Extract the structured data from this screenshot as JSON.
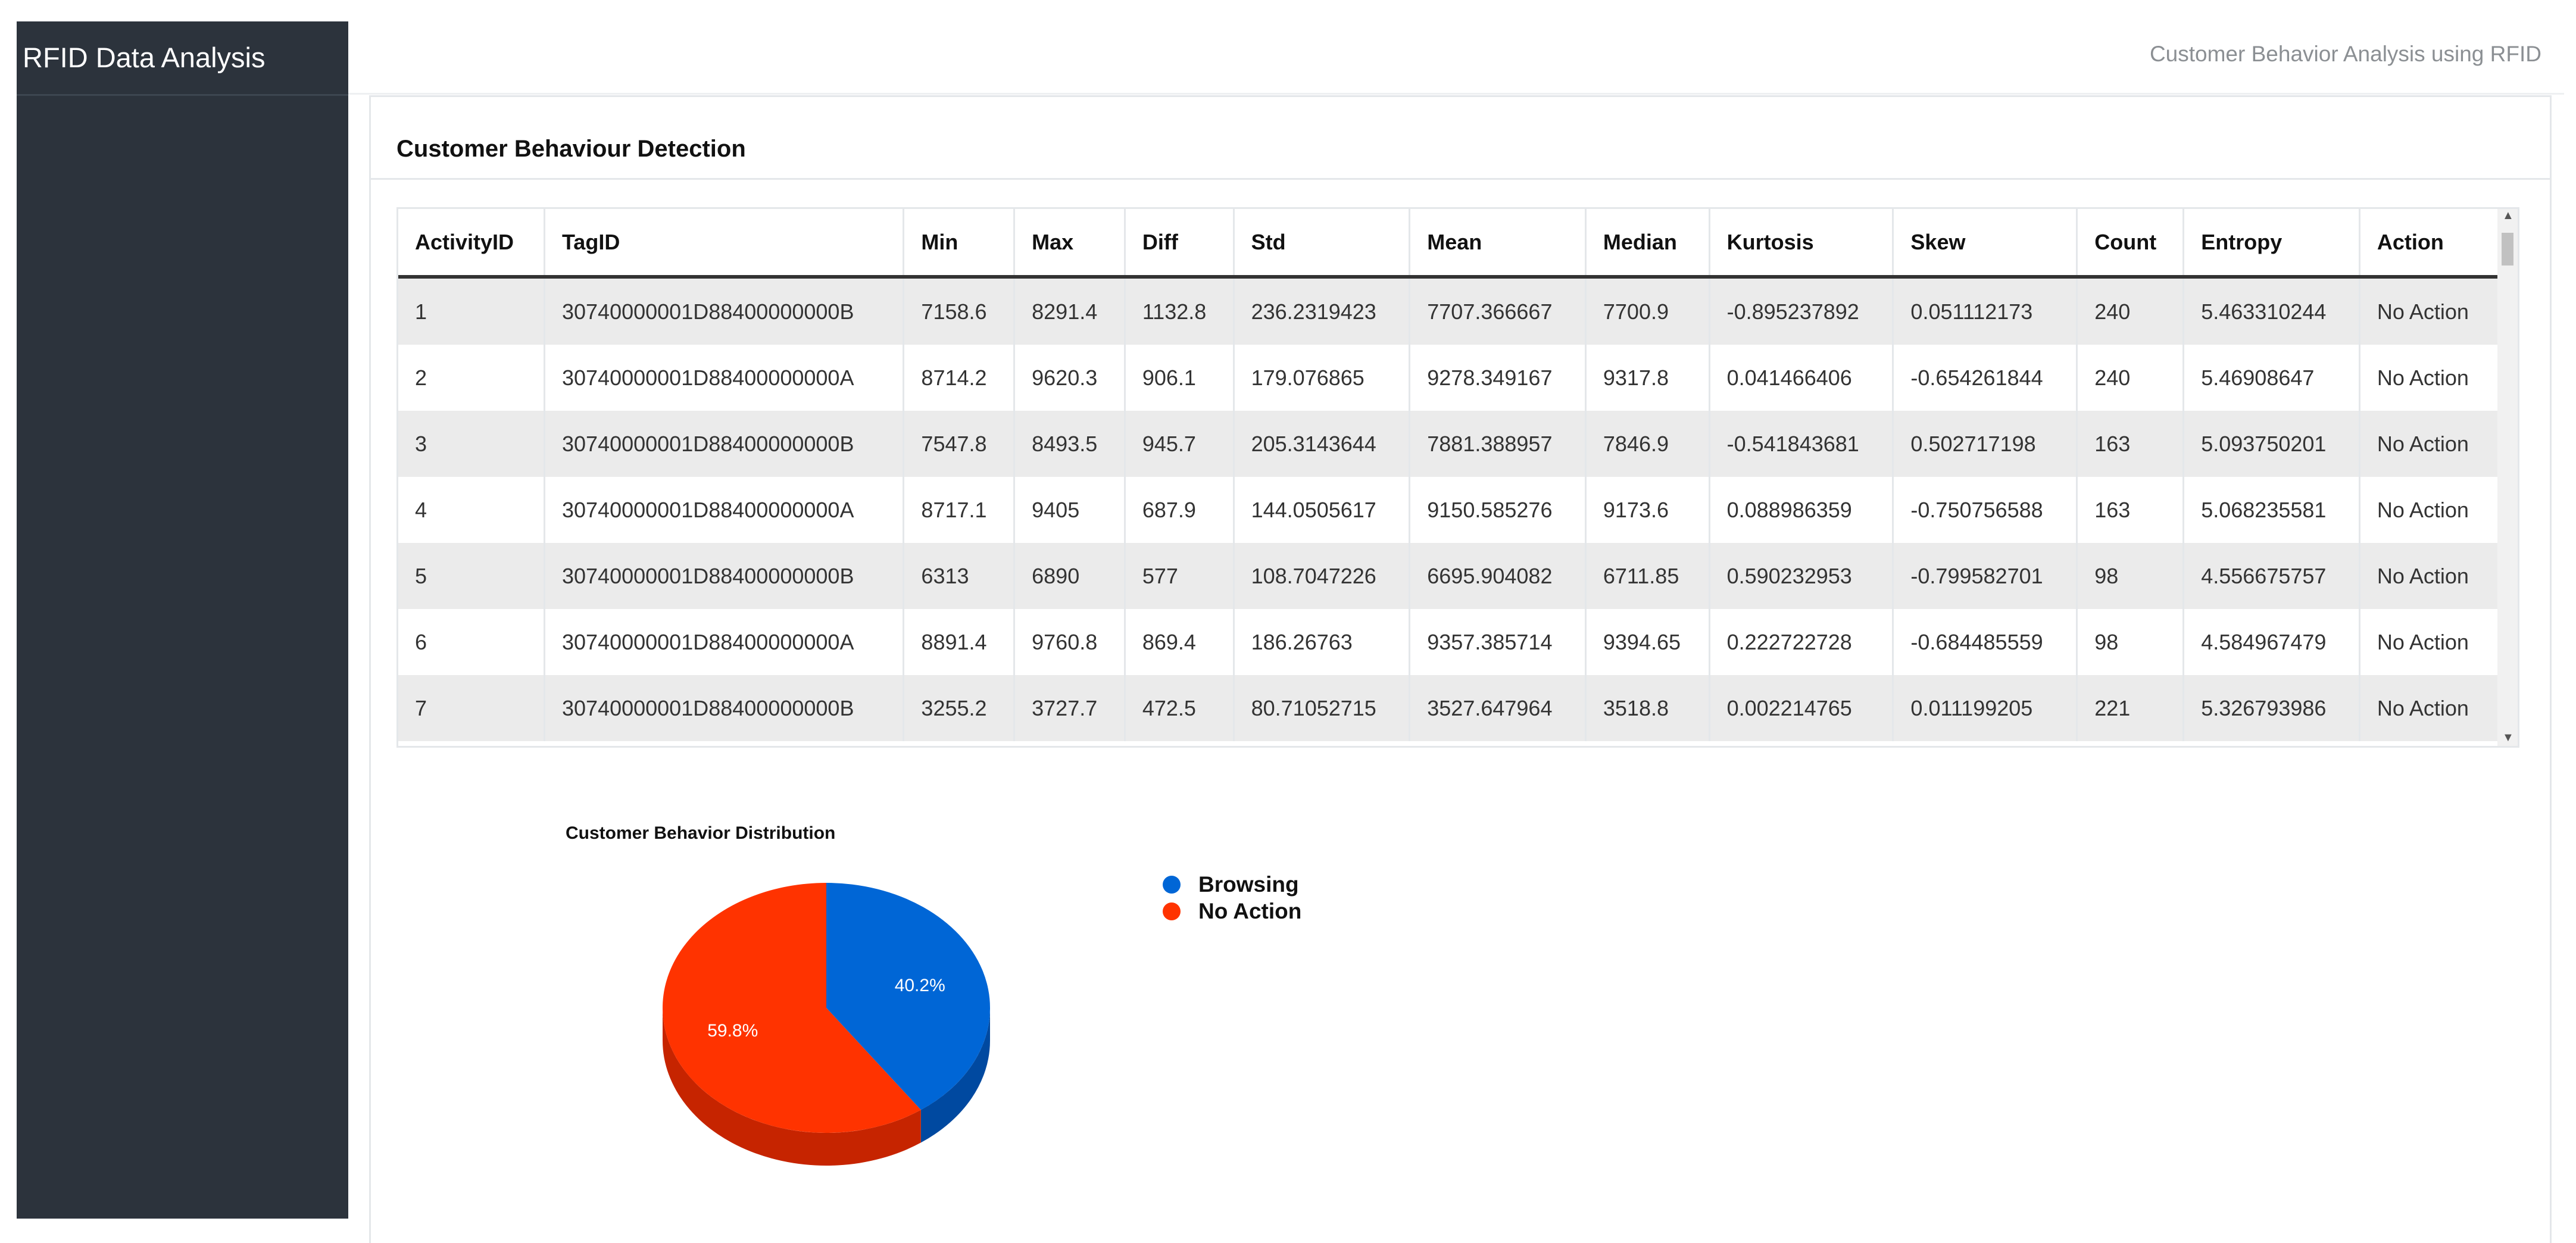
{
  "sidebar": {
    "brand": "RFID Data Analysis"
  },
  "topbar": {
    "title": "Customer Behavior Analysis using RFID"
  },
  "card": {
    "title": "Customer Behaviour Detection"
  },
  "table": {
    "columns": [
      "ActivityID",
      "TagID",
      "Min",
      "Max",
      "Diff",
      "Std",
      "Mean",
      "Median",
      "Kurtosis",
      "Skew",
      "Count",
      "Entropy",
      "Action"
    ],
    "rows": [
      [
        "1",
        "30740000001D88400000000B",
        "7158.6",
        "8291.4",
        "1132.8",
        "236.2319423",
        "7707.366667",
        "7700.9",
        "-0.895237892",
        "0.051112173",
        "240",
        "5.463310244",
        "No Action"
      ],
      [
        "2",
        "30740000001D88400000000A",
        "8714.2",
        "9620.3",
        "906.1",
        "179.076865",
        "9278.349167",
        "9317.8",
        "0.041466406",
        "-0.654261844",
        "240",
        "5.46908647",
        "No Action"
      ],
      [
        "3",
        "30740000001D88400000000B",
        "7547.8",
        "8493.5",
        "945.7",
        "205.3143644",
        "7881.388957",
        "7846.9",
        "-0.541843681",
        "0.502717198",
        "163",
        "5.093750201",
        "No Action"
      ],
      [
        "4",
        "30740000001D88400000000A",
        "8717.1",
        "9405",
        "687.9",
        "144.0505617",
        "9150.585276",
        "9173.6",
        "0.088986359",
        "-0.750756588",
        "163",
        "5.068235581",
        "No Action"
      ],
      [
        "5",
        "30740000001D88400000000B",
        "6313",
        "6890",
        "577",
        "108.7047226",
        "6695.904082",
        "6711.85",
        "0.590232953",
        "-0.799582701",
        "98",
        "4.556675757",
        "No Action"
      ],
      [
        "6",
        "30740000001D88400000000A",
        "8891.4",
        "9760.8",
        "869.4",
        "186.26763",
        "9357.385714",
        "9394.65",
        "0.222722728",
        "-0.684485559",
        "98",
        "4.584967479",
        "No Action"
      ],
      [
        "7",
        "30740000001D88400000000B",
        "3255.2",
        "3727.7",
        "472.5",
        "80.71052715",
        "3527.647964",
        "3518.8",
        "0.002214765",
        "0.011199205",
        "221",
        "5.326793986",
        "No Action"
      ]
    ]
  },
  "chart_data": {
    "type": "pie",
    "title": "Customer Behavior Distribution",
    "series": [
      {
        "name": "Browsing",
        "value": 40.2,
        "label": "40.2%",
        "color": "#0066d6"
      },
      {
        "name": "No Action",
        "value": 59.8,
        "label": "59.8%",
        "color": "#ff3300"
      }
    ],
    "legend_position": "right"
  }
}
